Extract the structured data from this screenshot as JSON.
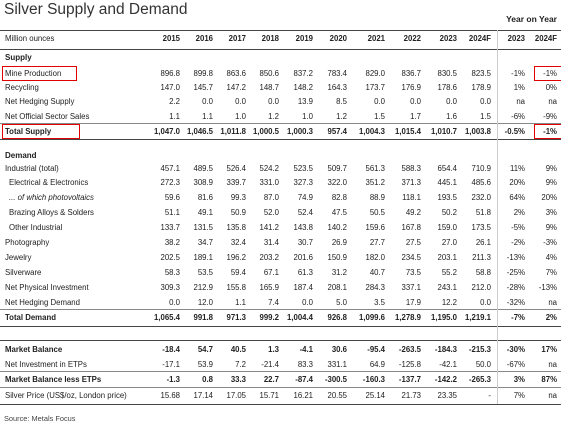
{
  "title": "Silver Supply and Demand",
  "year_on_year_label": "Year on Year",
  "units_label": "Million ounces",
  "columns": [
    "2015",
    "2016",
    "2017",
    "2018",
    "2019",
    "2020",
    "2021",
    "2022",
    "2023",
    "2024F"
  ],
  "yoy_columns": [
    "2023",
    "2024F"
  ],
  "sections": [
    {
      "title": "Supply",
      "rows": [
        {
          "label": "Mine Production",
          "values": [
            "896.8",
            "899.8",
            "863.6",
            "850.6",
            "837.2",
            "783.4",
            "829.0",
            "836.7",
            "830.5",
            "823.5"
          ],
          "yoy": [
            "-1%",
            "-1%"
          ],
          "indent": false,
          "bold": false,
          "highlight": true
        },
        {
          "label": "Recycling",
          "values": [
            "147.0",
            "145.7",
            "147.2",
            "148.7",
            "148.2",
            "164.3",
            "173.7",
            "176.9",
            "178.6",
            "178.9"
          ],
          "yoy": [
            "1%",
            "0%"
          ],
          "indent": false,
          "bold": false
        },
        {
          "label": "Net Hedging Supply",
          "values": [
            "2.2",
            "0.0",
            "0.0",
            "0.0",
            "13.9",
            "8.5",
            "0.0",
            "0.0",
            "0.0",
            "0.0"
          ],
          "yoy": [
            "na",
            "na"
          ],
          "indent": false,
          "bold": false
        },
        {
          "label": "Net Official Sector Sales",
          "values": [
            "1.1",
            "1.1",
            "1.0",
            "1.2",
            "1.0",
            "1.2",
            "1.5",
            "1.7",
            "1.6",
            "1.5"
          ],
          "yoy": [
            "-6%",
            "-9%"
          ],
          "indent": false,
          "bold": false
        },
        {
          "label": "Total Supply",
          "values": [
            "1,047.0",
            "1,046.5",
            "1,011.8",
            "1,000.5",
            "1,000.3",
            "957.4",
            "1,004.3",
            "1,015.4",
            "1,010.7",
            "1,003.8"
          ],
          "yoy": [
            "-0.5%",
            "-1%"
          ],
          "indent": false,
          "bold": true,
          "highlight": true
        }
      ]
    },
    {
      "title": "Demand",
      "rows": [
        {
          "label": "Industrial (total)",
          "values": [
            "457.1",
            "489.5",
            "526.4",
            "524.2",
            "523.5",
            "509.7",
            "561.3",
            "588.3",
            "654.4",
            "710.9"
          ],
          "yoy": [
            "11%",
            "9%"
          ],
          "indent": false,
          "bold": false
        },
        {
          "label": "Electrical & Electronics",
          "values": [
            "272.3",
            "308.9",
            "339.7",
            "331.0",
            "327.3",
            "322.0",
            "351.2",
            "371.3",
            "445.1",
            "485.6"
          ],
          "yoy": [
            "20%",
            "9%"
          ],
          "indent": true,
          "bold": false
        },
        {
          "label": "... of which photovoltaics",
          "values": [
            "59.6",
            "81.6",
            "99.3",
            "87.0",
            "74.9",
            "82.8",
            "88.9",
            "118.1",
            "193.5",
            "232.0"
          ],
          "yoy": [
            "64%",
            "20%"
          ],
          "indent": true,
          "bold": false,
          "italic": true
        },
        {
          "label": "Brazing Alloys & Solders",
          "values": [
            "51.1",
            "49.1",
            "50.9",
            "52.0",
            "52.4",
            "47.5",
            "50.5",
            "49.2",
            "50.2",
            "51.8"
          ],
          "yoy": [
            "2%",
            "3%"
          ],
          "indent": true,
          "bold": false
        },
        {
          "label": "Other Industrial",
          "values": [
            "133.7",
            "131.5",
            "135.8",
            "141.2",
            "143.8",
            "140.2",
            "159.6",
            "167.8",
            "159.0",
            "173.5"
          ],
          "yoy": [
            "-5%",
            "9%"
          ],
          "indent": true,
          "bold": false
        },
        {
          "label": "Photography",
          "values": [
            "38.2",
            "34.7",
            "32.4",
            "31.4",
            "30.7",
            "26.9",
            "27.7",
            "27.5",
            "27.0",
            "26.1"
          ],
          "yoy": [
            "-2%",
            "-3%"
          ],
          "indent": false,
          "bold": false
        },
        {
          "label": "Jewelry",
          "values": [
            "202.5",
            "189.1",
            "196.2",
            "203.2",
            "201.6",
            "150.9",
            "182.0",
            "234.5",
            "203.1",
            "211.3"
          ],
          "yoy": [
            "-13%",
            "4%"
          ],
          "indent": false,
          "bold": false
        },
        {
          "label": "Silverware",
          "values": [
            "58.3",
            "53.5",
            "59.4",
            "67.1",
            "61.3",
            "31.2",
            "40.7",
            "73.5",
            "55.2",
            "58.8"
          ],
          "yoy": [
            "-25%",
            "7%"
          ],
          "indent": false,
          "bold": false
        },
        {
          "label": "Net Physical Investment",
          "values": [
            "309.3",
            "212.9",
            "155.8",
            "165.9",
            "187.4",
            "208.1",
            "284.3",
            "337.1",
            "243.1",
            "212.0"
          ],
          "yoy": [
            "-28%",
            "-13%"
          ],
          "indent": false,
          "bold": false
        },
        {
          "label": "Net Hedging Demand",
          "values": [
            "0.0",
            "12.0",
            "1.1",
            "7.4",
            "0.0",
            "5.0",
            "3.5",
            "17.9",
            "12.2",
            "0.0"
          ],
          "yoy": [
            "-32%",
            "na"
          ],
          "indent": false,
          "bold": false
        },
        {
          "label": "Total Demand",
          "values": [
            "1,065.4",
            "991.8",
            "971.3",
            "999.2",
            "1,004.4",
            "926.8",
            "1,099.6",
            "1,278.9",
            "1,195.0",
            "1,219.1"
          ],
          "yoy": [
            "-7%",
            "2%"
          ],
          "indent": false,
          "bold": true
        }
      ]
    },
    {
      "title": "",
      "rows": [
        {
          "label": "Market Balance",
          "values": [
            "-18.4",
            "54.7",
            "40.5",
            "1.3",
            "-4.1",
            "30.6",
            "-95.4",
            "-263.5",
            "-184.3",
            "-215.3"
          ],
          "yoy": [
            "-30%",
            "17%"
          ],
          "indent": false,
          "bold": true
        },
        {
          "label": "Net Investment in ETPs",
          "values": [
            "-17.1",
            "53.9",
            "7.2",
            "-21.4",
            "83.3",
            "331.1",
            "64.9",
            "-125.8",
            "-42.1",
            "50.0"
          ],
          "yoy": [
            "-67%",
            "na"
          ],
          "indent": false,
          "bold": false
        },
        {
          "label": "Market Balance less ETPs",
          "values": [
            "-1.3",
            "0.8",
            "33.3",
            "22.7",
            "-87.4",
            "-300.5",
            "-160.3",
            "-137.7",
            "-142.2",
            "-265.3"
          ],
          "yoy": [
            "3%",
            "87%"
          ],
          "indent": false,
          "bold": true
        },
        {
          "label": "Silver Price (US$/oz, London price)",
          "values": [
            "15.68",
            "17.14",
            "17.05",
            "15.71",
            "16.21",
            "20.55",
            "25.14",
            "21.73",
            "23.35",
            "-"
          ],
          "yoy": [
            "7%",
            "na"
          ],
          "indent": false,
          "bold": false
        }
      ]
    }
  ],
  "source": "Source: Metals Focus",
  "colors": {
    "highlight_box": "#e00000",
    "text": "#222222",
    "rule": "#444444"
  }
}
